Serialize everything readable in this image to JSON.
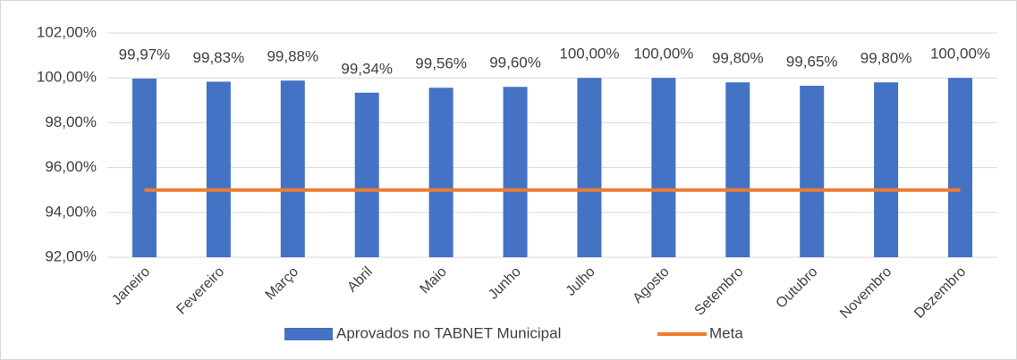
{
  "chart_data": {
    "type": "bar",
    "categories": [
      "Janeiro",
      "Fevereiro",
      "Março",
      "Abril",
      "Maio",
      "Junho",
      "Julho",
      "Agosto",
      "Setembro",
      "Outubro",
      "Novembro",
      "Dezembro"
    ],
    "series": [
      {
        "name": "Aprovados no TABNET Municipal",
        "type": "bar",
        "color": "#4472c4",
        "values": [
          99.97,
          99.83,
          99.88,
          99.34,
          99.56,
          99.6,
          100.0,
          100.0,
          99.8,
          99.65,
          99.8,
          100.0
        ],
        "value_labels": [
          "99,97%",
          "99,83%",
          "99,88%",
          "99,34%",
          "99,56%",
          "99,60%",
          "100,00%",
          "100,00%",
          "99,80%",
          "99,65%",
          "99,80%",
          "100,00%"
        ]
      },
      {
        "name": "Meta",
        "type": "line",
        "color": "#ed7d31",
        "values": [
          95,
          95,
          95,
          95,
          95,
          95,
          95,
          95,
          95,
          95,
          95,
          95
        ]
      }
    ],
    "ylim": [
      92,
      102
    ],
    "yticks": [
      {
        "value": 92,
        "label": "92,00%"
      },
      {
        "value": 94,
        "label": "94,00%"
      },
      {
        "value": 96,
        "label": "96,00%"
      },
      {
        "value": 98,
        "label": "98,00%"
      },
      {
        "value": 100,
        "label": "100,00%"
      },
      {
        "value": 102,
        "label": "102,00%"
      }
    ],
    "grid": true,
    "legend": "bottom"
  }
}
